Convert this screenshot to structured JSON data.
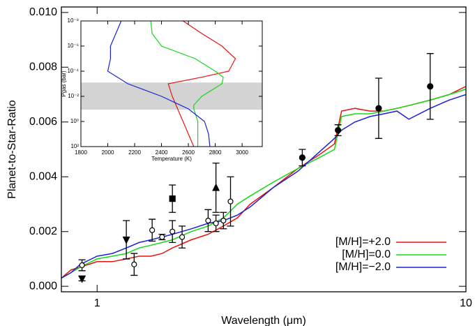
{
  "chart_data": [
    {
      "type": "line",
      "ylabel": "Planet-to-Star-Ratio",
      "xlabel": "Wavelength (μm)",
      "xlog": true,
      "xlim": [
        0.8,
        10
      ],
      "xticks": [
        1,
        10
      ],
      "ylim": [
        -0.0002,
        0.0102
      ],
      "yticks": [
        {
          "value": 0,
          "label": "0.000"
        },
        {
          "value": 0.002,
          "label": "0.002"
        },
        {
          "value": 0.004,
          "label": "0.004"
        },
        {
          "value": 0.006,
          "label": "0.006"
        },
        {
          "value": 0.008,
          "label": "0.008"
        },
        {
          "value": 0.01,
          "label": "0.010"
        }
      ],
      "x": [
        0.8,
        0.85,
        0.9,
        1.0,
        1.1,
        1.2,
        1.3,
        1.4,
        1.5,
        1.6,
        1.8,
        2.0,
        2.2,
        2.4,
        2.6,
        3.0,
        3.5,
        4.0,
        4.4,
        4.6,
        5.0,
        5.5,
        6.0,
        6.5,
        7,
        8,
        9,
        10
      ],
      "series": [
        {
          "name": "[M/H]=+2.0",
          "color": "#e8140c",
          "values": [
            0.0003,
            0.0006,
            0.0007,
            0.0009,
            0.0009,
            0.001,
            0.0011,
            0.0011,
            0.0012,
            0.0014,
            0.0017,
            0.0019,
            0.0022,
            0.0025,
            0.003,
            0.0036,
            0.0043,
            0.0048,
            0.0052,
            0.0064,
            0.0065,
            0.0064,
            0.0064,
            0.0065,
            0.0066,
            0.0068,
            0.007,
            0.0073
          ]
        },
        {
          "name": "[M/H]=0.0",
          "color": "#16d816",
          "values": [
            0.0003,
            0.0005,
            0.0007,
            0.001,
            0.0011,
            0.0012,
            0.0014,
            0.0015,
            0.0016,
            0.0017,
            0.002,
            0.0022,
            0.0025,
            0.003,
            0.0033,
            0.0038,
            0.0043,
            0.0047,
            0.005,
            0.0062,
            0.0063,
            0.0063,
            0.0064,
            0.0065,
            0.0066,
            0.0068,
            0.007,
            0.0072
          ]
        },
        {
          "name": "[M/H]=−2.0",
          "color": "#1a22d8",
          "values": [
            0.0003,
            0.0005,
            0.0008,
            0.0011,
            0.0012,
            0.0014,
            0.0016,
            0.0017,
            0.0018,
            0.0019,
            0.0021,
            0.0023,
            0.0024,
            0.0026,
            0.0029,
            0.0036,
            0.0042,
            0.0049,
            0.0054,
            0.0057,
            0.006,
            0.0062,
            0.0063,
            0.0064,
            0.0061,
            0.0065,
            0.0068,
            0.007
          ]
        }
      ],
      "points": {
        "x": [
          0.91,
          0.91,
          1.2,
          1.26,
          1.41,
          1.5,
          1.6,
          1.6,
          1.7,
          2.0,
          2.1,
          2.1,
          2.2,
          2.3,
          3.6,
          4.5,
          5.8,
          8.0
        ],
        "y": [
          0.00077,
          0.00028,
          0.0017,
          0.0008,
          0.00205,
          0.0018,
          0.002,
          0.0032,
          0.0018,
          0.0024,
          0.0023,
          0.0036,
          0.0024,
          0.0031,
          0.0047,
          0.0057,
          0.0065,
          0.0073
        ],
        "err": [
          0.0002,
          8e-05,
          0.0007,
          0.0004,
          0.0004,
          0.0001,
          0.0004,
          0.0005,
          0.0004,
          0.0004,
          0.0003,
          0.0009,
          0.0003,
          0.0009,
          0.0003,
          0.0002,
          0.0011,
          0.0012
        ],
        "marker": [
          "o",
          "v",
          "v",
          "o",
          "o",
          "o",
          "o",
          "s",
          "o",
          "o",
          "o",
          "^",
          "o",
          "o",
          "O",
          "O",
          "O",
          "O"
        ],
        "color": "#000000"
      }
    },
    {
      "type": "line",
      "ylabel": "Pgas (bar)",
      "xlabel": "Temperature (K)",
      "ylog": true,
      "yinvert": true,
      "xlim": [
        1800,
        3150
      ],
      "xticks": [
        1800,
        2000,
        2200,
        2400,
        2600,
        2800,
        3000
      ],
      "ylim": [
        1e-08,
        100
      ],
      "yticks": [
        {
          "value": 1e-08,
          "label": "10⁻⁸"
        },
        {
          "value": 1e-06,
          "label": "10⁻⁶"
        },
        {
          "value": 0.0001,
          "label": "10⁻⁴"
        },
        {
          "value": 0.01,
          "label": "10⁻²"
        },
        {
          "value": 1,
          "label": "10⁰"
        },
        {
          "value": 100,
          "label": "10²"
        }
      ],
      "band": [
        0.0008,
        0.115
      ],
      "band_color": "#d3d3d3",
      "series": [
        {
          "color": "#e8140c",
          "x": [
            2560,
            2700,
            2850,
            2950,
            2900,
            2700,
            2450,
            2480,
            2520,
            2560,
            2640
          ],
          "values": [
            1e-08,
            1e-07,
            1e-06,
            1e-05,
            0.0001,
            0.0003,
            0.001,
            0.01,
            0.1,
            1,
            100
          ]
        },
        {
          "color": "#16d816",
          "x": [
            2320,
            2330,
            2400,
            2650,
            2800,
            2860,
            2850,
            2700,
            2640,
            2640,
            2670,
            2670
          ],
          "values": [
            1e-08,
            1e-07,
            1e-06,
            1e-05,
            0.0001,
            0.0003,
            0.001,
            0.01,
            0.05,
            0.1,
            1,
            100
          ]
        },
        {
          "color": "#1a22d8",
          "x": [
            2100,
            2020,
            2020,
            2000,
            2150,
            2400,
            2600,
            2720,
            2750,
            2760
          ],
          "values": [
            1e-08,
            1e-06,
            1e-05,
            0.0001,
            0.001,
            0.01,
            0.1,
            1,
            10,
            100
          ]
        }
      ]
    }
  ]
}
